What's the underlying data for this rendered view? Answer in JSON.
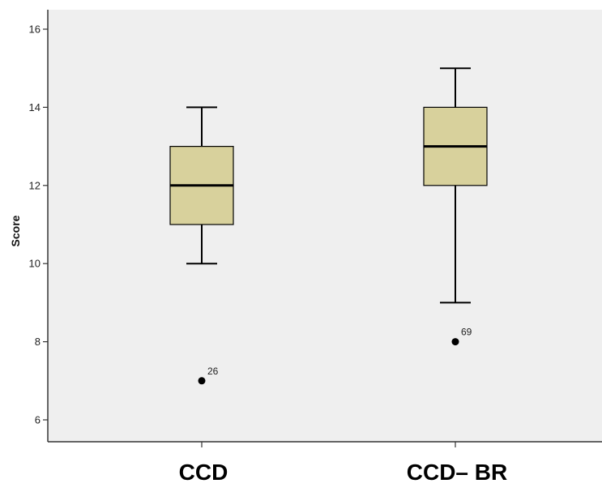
{
  "chart_data": {
    "type": "boxplot",
    "title": "",
    "xlabel": "",
    "ylabel": "Score",
    "ylim": [
      5.3,
      16.5
    ],
    "yticks": [
      6,
      8,
      10,
      12,
      14,
      16
    ],
    "grid": false,
    "colors": {
      "plot_background": "#efefef",
      "box_fill": "#d8d19c",
      "stroke": "#000000"
    },
    "categories": [
      "CCD",
      "CCD– BR"
    ],
    "boxes": [
      {
        "category": "CCD",
        "whisker_low": 10,
        "q1": 11,
        "median": 12,
        "q3": 13,
        "whisker_high": 14,
        "outliers": [
          {
            "value": 7,
            "label": "26"
          }
        ]
      },
      {
        "category": "CCD– BR",
        "whisker_low": 9,
        "q1": 12,
        "median": 13,
        "q3": 14,
        "whisker_high": 15,
        "outliers": [
          {
            "value": 8,
            "label": "69"
          }
        ]
      }
    ]
  }
}
